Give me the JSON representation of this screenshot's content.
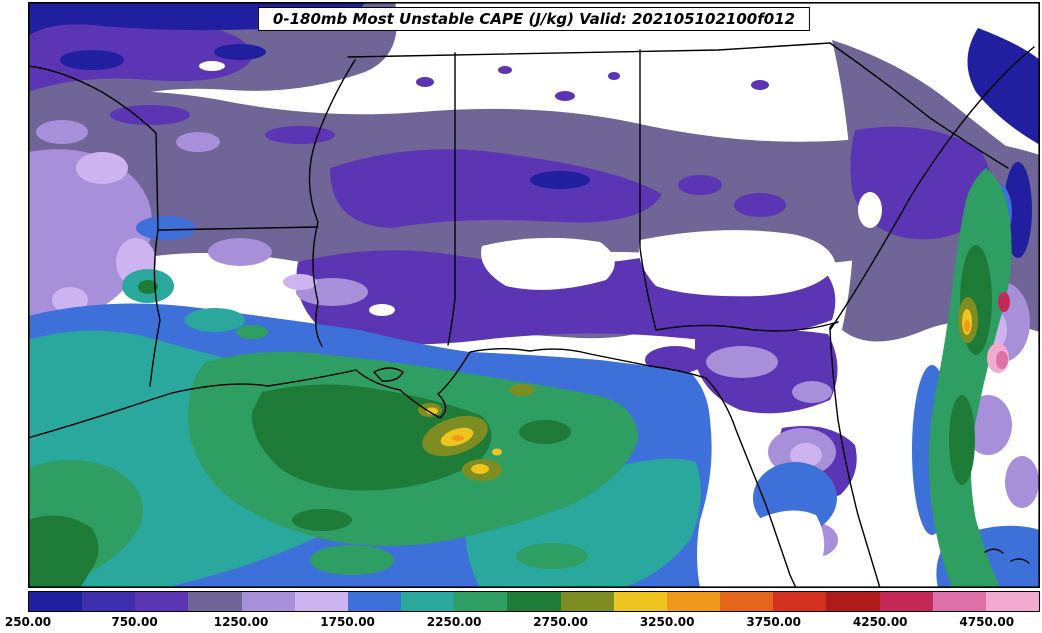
{
  "map": {
    "title": "0-180mb Most Unstable CAPE (J/kg) Valid: 202105102100f012"
  },
  "colorbar": {
    "under_color": "#ffffff",
    "tick_labels": [
      "250.00",
      "750.00",
      "1250.00",
      "1750.00",
      "2250.00",
      "2750.00",
      "3250.00",
      "3750.00",
      "4250.00",
      "4750.00"
    ],
    "segment_colors": [
      "#1f1f9f",
      "#3d2fae",
      "#5c35b5",
      "#6f6596",
      "#a78fda",
      "#cdb4f0",
      "#3e70da",
      "#2aa89e",
      "#2f9e62",
      "#1f7c38",
      "#7d8d22",
      "#eec41e",
      "#f0981c",
      "#e4661a",
      "#d33220",
      "#ad1b1b",
      "#c42a58",
      "#de71a9",
      "#f3aad0"
    ]
  },
  "chart_data": {
    "type": "heatmap",
    "title": "0-180mb Most Unstable CAPE (J/kg) Valid: 202105102100f012",
    "variable": "Most Unstable CAPE",
    "layer": "0-180mb",
    "units": "J/kg",
    "valid_time": "202105102100f012",
    "colorbar_levels": [
      250,
      500,
      750,
      1000,
      1250,
      1500,
      1750,
      2000,
      2250,
      2500,
      2750,
      3000,
      3250,
      3500,
      3750,
      4000,
      4250,
      4500,
      4750,
      5000
    ],
    "colorbar_colors": [
      "#1f1f9f",
      "#3d2fae",
      "#5c35b5",
      "#6f6596",
      "#a78fda",
      "#cdb4f0",
      "#3e70da",
      "#2aa89e",
      "#2f9e62",
      "#1f7c38",
      "#7d8d22",
      "#eec41e",
      "#f0981c",
      "#e4661a",
      "#d33220",
      "#ad1b1b",
      "#c42a58",
      "#de71a9",
      "#f3aad0"
    ],
    "tick_labels": [
      "250.00",
      "750.00",
      "1250.00",
      "1750.00",
      "2250.00",
      "2750.00",
      "3250.00",
      "3750.00",
      "4250.00",
      "4750.00"
    ],
    "under_threshold_color": "#ffffff",
    "legend_position": "bottom",
    "basemap": "US state boundaries and Gulf/Atlantic coastline"
  }
}
